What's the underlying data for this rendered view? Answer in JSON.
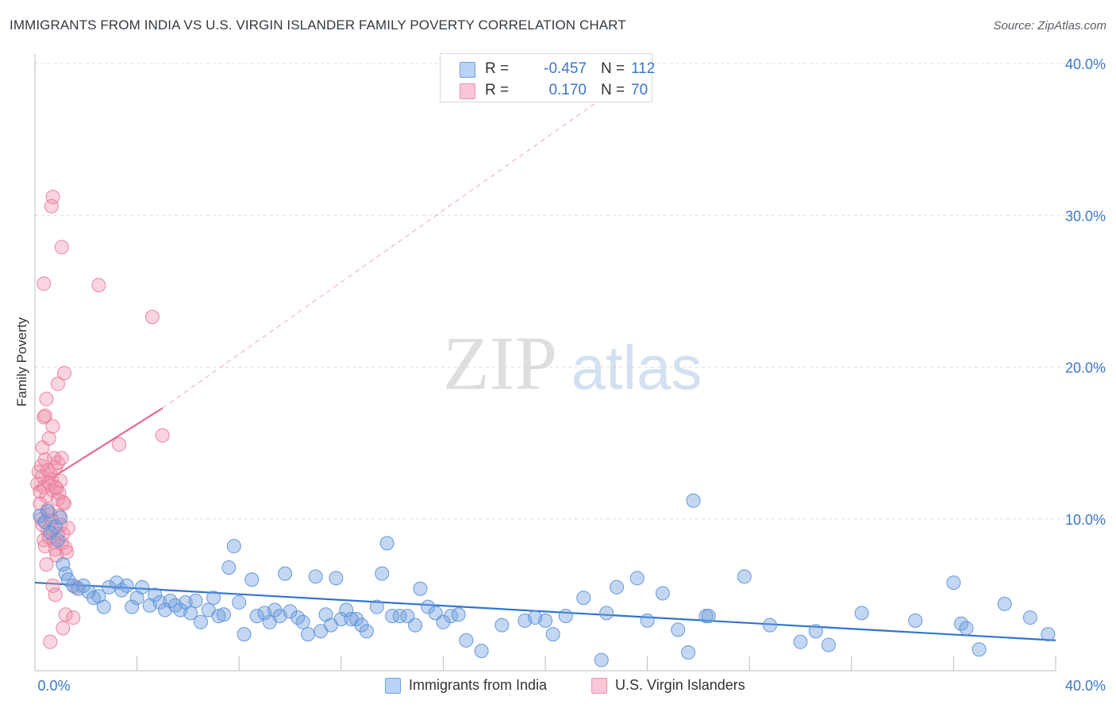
{
  "chart_data": {
    "type": "scatter",
    "title": "IMMIGRANTS FROM INDIA VS U.S. VIRGIN ISLANDER FAMILY POVERTY CORRELATION CHART",
    "source": "Source: ZipAtlas.com",
    "watermark": {
      "zip": "ZIP",
      "atlas": "atlas"
    },
    "xlabel": "",
    "ylabel": "Family Poverty",
    "xlim": [
      0,
      40
    ],
    "ylim": [
      0,
      40
    ],
    "x_tick_labels": [
      "0.0%",
      "40.0%"
    ],
    "y_ticks": [
      10,
      20,
      30,
      40
    ],
    "y_tick_labels": [
      "10.0%",
      "20.0%",
      "30.0%",
      "40.0%"
    ],
    "grid": true,
    "legend": {
      "position": "top-center",
      "entries": [
        {
          "name": "Immigrants from India",
          "r_label": "R =",
          "r_value": "-0.457",
          "n_label": "N =",
          "n_value": "112",
          "color": "#6f9fe0"
        },
        {
          "name": "U.S. Virgin Islanders",
          "r_label": "R =",
          "r_value": "0.170",
          "n_label": "N =",
          "n_value": "70",
          "color": "#f090ab"
        }
      ]
    },
    "series": [
      {
        "name": "Immigrants from India",
        "color": "#6f9fe0",
        "stroke": "#5b8fd6",
        "trend_color": "#2f74cf",
        "trend": {
          "x": [
            0,
            40
          ],
          "y": [
            5.8,
            2.0
          ]
        },
        "points": [
          [
            0.2,
            10.2
          ],
          [
            0.4,
            9.8
          ],
          [
            0.5,
            10.5
          ],
          [
            0.6,
            9.1
          ],
          [
            0.8,
            9.5
          ],
          [
            0.9,
            8.6
          ],
          [
            1.0,
            10.1
          ],
          [
            1.1,
            7.0
          ],
          [
            1.2,
            6.4
          ],
          [
            1.3,
            6.0
          ],
          [
            1.5,
            5.6
          ],
          [
            1.7,
            5.4
          ],
          [
            1.9,
            5.6
          ],
          [
            2.1,
            5.2
          ],
          [
            2.3,
            4.8
          ],
          [
            2.5,
            4.9
          ],
          [
            2.7,
            4.2
          ],
          [
            2.9,
            5.5
          ],
          [
            3.2,
            5.8
          ],
          [
            3.4,
            5.3
          ],
          [
            3.6,
            5.6
          ],
          [
            3.8,
            4.2
          ],
          [
            4.0,
            4.8
          ],
          [
            4.2,
            5.5
          ],
          [
            4.5,
            4.3
          ],
          [
            4.7,
            5.0
          ],
          [
            4.9,
            4.5
          ],
          [
            5.1,
            4.0
          ],
          [
            5.3,
            4.6
          ],
          [
            5.5,
            4.3
          ],
          [
            5.7,
            4.0
          ],
          [
            5.9,
            4.5
          ],
          [
            6.1,
            3.8
          ],
          [
            6.3,
            4.6
          ],
          [
            6.5,
            3.2
          ],
          [
            6.8,
            4.0
          ],
          [
            7.0,
            4.8
          ],
          [
            7.2,
            3.6
          ],
          [
            7.4,
            3.7
          ],
          [
            7.6,
            6.8
          ],
          [
            7.8,
            8.2
          ],
          [
            8.0,
            4.5
          ],
          [
            8.2,
            2.4
          ],
          [
            8.5,
            6.0
          ],
          [
            8.7,
            3.6
          ],
          [
            9.0,
            3.8
          ],
          [
            9.2,
            3.2
          ],
          [
            9.4,
            4.0
          ],
          [
            9.6,
            3.6
          ],
          [
            9.8,
            6.4
          ],
          [
            10.0,
            3.9
          ],
          [
            10.3,
            3.5
          ],
          [
            10.5,
            3.2
          ],
          [
            10.7,
            2.4
          ],
          [
            11.0,
            6.2
          ],
          [
            11.2,
            2.6
          ],
          [
            11.4,
            3.7
          ],
          [
            11.6,
            3.0
          ],
          [
            11.8,
            6.1
          ],
          [
            12.0,
            3.4
          ],
          [
            12.2,
            4.0
          ],
          [
            12.4,
            3.4
          ],
          [
            12.6,
            3.4
          ],
          [
            12.8,
            3.0
          ],
          [
            13.0,
            2.6
          ],
          [
            13.4,
            4.2
          ],
          [
            13.6,
            6.4
          ],
          [
            13.8,
            8.4
          ],
          [
            14.0,
            3.6
          ],
          [
            14.3,
            3.6
          ],
          [
            14.6,
            3.6
          ],
          [
            14.9,
            3.0
          ],
          [
            15.1,
            5.4
          ],
          [
            15.4,
            4.2
          ],
          [
            15.7,
            3.8
          ],
          [
            16.0,
            3.2
          ],
          [
            16.3,
            3.6
          ],
          [
            16.6,
            3.7
          ],
          [
            16.9,
            2.0
          ],
          [
            17.5,
            1.3
          ],
          [
            18.3,
            3.0
          ],
          [
            19.2,
            3.3
          ],
          [
            20.0,
            3.3
          ],
          [
            20.3,
            2.4
          ],
          [
            20.8,
            3.6
          ],
          [
            21.5,
            4.8
          ],
          [
            22.2,
            0.7
          ],
          [
            22.4,
            3.8
          ],
          [
            22.8,
            5.5
          ],
          [
            23.6,
            6.1
          ],
          [
            24.0,
            3.3
          ],
          [
            24.6,
            5.1
          ],
          [
            25.2,
            2.7
          ],
          [
            25.6,
            1.2
          ],
          [
            25.8,
            11.2
          ],
          [
            26.3,
            3.6
          ],
          [
            27.8,
            6.2
          ],
          [
            28.8,
            3.0
          ],
          [
            30.0,
            1.9
          ],
          [
            30.6,
            2.6
          ],
          [
            31.1,
            1.7
          ],
          [
            32.4,
            3.8
          ],
          [
            34.5,
            3.3
          ],
          [
            36.0,
            5.8
          ],
          [
            36.3,
            3.1
          ],
          [
            36.5,
            2.8
          ],
          [
            37.0,
            1.4
          ],
          [
            38.0,
            4.4
          ],
          [
            39.0,
            3.5
          ],
          [
            39.7,
            2.4
          ],
          [
            19.6,
            3.5
          ],
          [
            26.4,
            3.6
          ]
        ]
      },
      {
        "name": "U.S. Virgin Islanders",
        "color": "#f090ab",
        "stroke": "#e87a9a",
        "trend_color": "#e86a90",
        "trend": {
          "x": [
            0,
            5.0
          ],
          "y": [
            12.0,
            17.3
          ]
        },
        "trend_extension": {
          "x": [
            5.0,
            24.0
          ],
          "y": [
            17.3,
            39.8
          ]
        },
        "points": [
          [
            0.1,
            12.3
          ],
          [
            0.15,
            13.1
          ],
          [
            0.2,
            11.8
          ],
          [
            0.25,
            13.5
          ],
          [
            0.3,
            12.8
          ],
          [
            0.35,
            12.1
          ],
          [
            0.4,
            13.9
          ],
          [
            0.45,
            11.5
          ],
          [
            0.5,
            10.6
          ],
          [
            0.55,
            12.4
          ],
          [
            0.6,
            13.0
          ],
          [
            0.65,
            12.6
          ],
          [
            0.7,
            11.9
          ],
          [
            0.75,
            14.0
          ],
          [
            0.8,
            13.4
          ],
          [
            0.85,
            12.0
          ],
          [
            0.9,
            11.3
          ],
          [
            0.95,
            10.2
          ],
          [
            1.0,
            9.6
          ],
          [
            1.05,
            8.4
          ],
          [
            1.1,
            9.0
          ],
          [
            1.15,
            11.0
          ],
          [
            1.2,
            8.1
          ],
          [
            1.25,
            7.8
          ],
          [
            1.3,
            9.4
          ],
          [
            0.2,
            11.0
          ],
          [
            0.25,
            10.0
          ],
          [
            0.3,
            9.6
          ],
          [
            0.35,
            8.6
          ],
          [
            0.4,
            8.2
          ],
          [
            0.45,
            7.0
          ],
          [
            0.5,
            9.2
          ],
          [
            0.55,
            8.8
          ],
          [
            0.6,
            10.3
          ],
          [
            0.65,
            9.9
          ],
          [
            0.7,
            9.3
          ],
          [
            0.75,
            8.5
          ],
          [
            0.8,
            8.0
          ],
          [
            0.85,
            7.6
          ],
          [
            0.9,
            9.0
          ],
          [
            0.3,
            14.7
          ],
          [
            0.35,
            16.7
          ],
          [
            0.45,
            17.9
          ],
          [
            0.55,
            15.3
          ],
          [
            0.7,
            16.1
          ],
          [
            0.9,
            18.9
          ],
          [
            1.15,
            19.6
          ],
          [
            0.35,
            25.5
          ],
          [
            0.7,
            31.2
          ],
          [
            0.65,
            30.6
          ],
          [
            1.05,
            27.9
          ],
          [
            2.5,
            25.4
          ],
          [
            3.3,
            14.9
          ],
          [
            4.6,
            23.3
          ],
          [
            5.0,
            15.5
          ],
          [
            1.2,
            3.7
          ],
          [
            1.5,
            3.5
          ],
          [
            1.1,
            2.8
          ],
          [
            0.6,
            1.9
          ],
          [
            0.8,
            5.0
          ],
          [
            1.6,
            5.5
          ],
          [
            0.7,
            5.6
          ],
          [
            1.0,
            12.5
          ],
          [
            0.9,
            13.7
          ],
          [
            0.5,
            13.2
          ],
          [
            1.05,
            14.0
          ],
          [
            0.95,
            11.7
          ],
          [
            0.4,
            16.8
          ],
          [
            1.1,
            11.1
          ],
          [
            0.8,
            12.1
          ]
        ]
      }
    ]
  }
}
